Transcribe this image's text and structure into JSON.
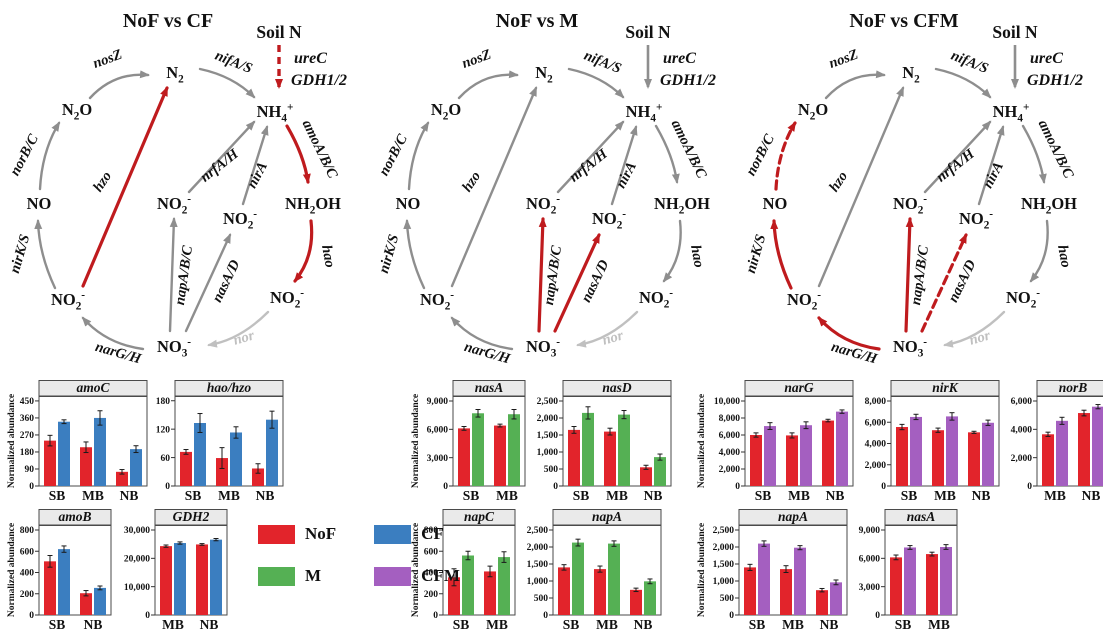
{
  "palette": {
    "NoF": "#e2242b",
    "CF": "#3b7ec0",
    "M": "#55b054",
    "CFM": "#a45fc0",
    "arrow_red": "#bf1b1e",
    "arrow_gray": "#8e8e8e",
    "arrow_lightgray": "#c0c0c0",
    "chart_header_bg": "#eaeaea",
    "chart_border": "#4a4a4a",
    "text_black": "#111111"
  },
  "legend": {
    "items": [
      {
        "label": "NoF",
        "color": "#e2242b"
      },
      {
        "label": "CF",
        "color": "#3b7ec0"
      },
      {
        "label": "M",
        "color": "#55b054"
      },
      {
        "label": "CFM",
        "color": "#a45fc0"
      }
    ]
  },
  "cycle": {
    "nodes": {
      "n2": "N_2",
      "nh4": "NH_4^+",
      "n2o": "N_2O",
      "no": "NO",
      "no2l": "NO_2^-",
      "no3": "NO_3^-",
      "no2br": "NO_2^-",
      "nh2oh": "NH_2OH",
      "no2c1": "NO_2^-",
      "no2c2": "NO_2^-"
    },
    "genes": {
      "nosZ": "nosZ",
      "nifAS": "nifA/S",
      "amo": "amoA/B/C",
      "hao": "hao",
      "nor": "nor",
      "nar": "narG/H",
      "nirKS": "nirK/S",
      "norBC": "norB/C",
      "hzo": "hzo",
      "nap": "napA/B/C",
      "nas": "nasA/D",
      "nrf": "nrfA/H",
      "nirA": "nirA"
    },
    "soil_label": "Soil N",
    "soil_genes": [
      "ureC",
      "GDH1/2"
    ]
  },
  "diagrams": [
    {
      "title": "NoF vs CF",
      "arrows": {
        "soil": "red_dashed",
        "nosZ": "gray",
        "nifAS": "gray",
        "amo": "red",
        "hao": "red",
        "nor": "lightgray",
        "nar": "gray",
        "nirKS": "gray",
        "norBC": "gray",
        "hzo": "red",
        "nap": "gray",
        "nas": "gray",
        "nrf": "gray",
        "nirA": "gray"
      }
    },
    {
      "title": "NoF vs M",
      "arrows": {
        "soil": "gray",
        "nosZ": "gray",
        "nifAS": "gray",
        "amo": "gray",
        "hao": "gray",
        "nor": "lightgray",
        "nar": "gray",
        "nirKS": "gray",
        "norBC": "gray",
        "hzo": "gray",
        "nap": "red",
        "nas": "red",
        "nrf": "gray",
        "nirA": "gray"
      }
    },
    {
      "title": "NoF vs CFM",
      "arrows": {
        "soil": "gray",
        "nosZ": "gray",
        "nifAS": "gray",
        "amo": "gray",
        "hao": "gray",
        "nor": "lightgray",
        "nar": "red",
        "nirKS": "red",
        "norBC": "red_dashed",
        "hzo": "gray",
        "nap": "red",
        "nas": "red_dashed",
        "nrf": "gray",
        "nirA": "gray"
      }
    }
  ],
  "chart_data": {
    "groups": [
      {
        "comparison": "NoF vs CF",
        "rows": [
          [
            {
              "type": "bar",
              "title": "amoC",
              "ylabel": "Normalized abundance",
              "categories": [
                "SB",
                "MB",
                "NB"
              ],
              "yticks": [
                0,
                90,
                180,
                270,
                360,
                450
              ],
              "ylim": [
                0,
                476
              ],
              "series": [
                {
                  "name": "NoF",
                  "values": [
                    240,
                    205,
                    75
                  ],
                  "errors": [
                    28,
                    28,
                    12
                  ]
                },
                {
                  "name": "CF",
                  "values": [
                    340,
                    360,
                    195
                  ],
                  "errors": [
                    10,
                    38,
                    18
                  ]
                }
              ]
            },
            {
              "type": "bar",
              "title": "hao/hzo",
              "ylabel": null,
              "categories": [
                "SB",
                "MB",
                "NB"
              ],
              "yticks": [
                0,
                60,
                120,
                180
              ],
              "ylim": [
                0,
                190
              ],
              "series": [
                {
                  "name": "NoF",
                  "values": [
                    72,
                    59,
                    37
                  ],
                  "errors": [
                    5,
                    22,
                    10
                  ]
                },
                {
                  "name": "CF",
                  "values": [
                    133,
                    113,
                    140
                  ],
                  "errors": [
                    20,
                    12,
                    18
                  ]
                }
              ]
            }
          ],
          [
            {
              "type": "bar",
              "title": "amoB",
              "ylabel": "Normalized abundance",
              "categories": [
                "SB",
                "NB"
              ],
              "yticks": [
                0,
                200,
                400,
                600,
                800
              ],
              "ylim": [
                0,
                847
              ],
              "series": [
                {
                  "name": "NoF",
                  "values": [
                    505,
                    205
                  ],
                  "errors": [
                    55,
                    25
                  ]
                },
                {
                  "name": "CF",
                  "values": [
                    620,
                    255
                  ],
                  "errors": [
                    30,
                    18
                  ]
                }
              ]
            },
            {
              "type": "bar",
              "title": "GDH2",
              "ylabel": null,
              "categories": [
                "MB",
                "NB"
              ],
              "yticks": [
                0,
                10000,
                20000,
                30000
              ],
              "ylim": [
                0,
                31765
              ],
              "series": [
                {
                  "name": "NoF",
                  "values": [
                    24300,
                    24900
                  ],
                  "errors": [
                    400,
                    300
                  ]
                },
                {
                  "name": "CF",
                  "values": [
                    25400,
                    26600
                  ],
                  "errors": [
                    400,
                    400
                  ]
                }
              ]
            }
          ]
        ]
      },
      {
        "comparison": "NoF vs M",
        "rows": [
          [
            {
              "type": "bar",
              "title": "nasA",
              "ylabel": "Normalized abundance",
              "categories": [
                "SB",
                "MB"
              ],
              "yticks": [
                0,
                3000,
                6000,
                9000
              ],
              "ylim": [
                0,
                9529
              ],
              "series": [
                {
                  "name": "NoF",
                  "values": [
                    6100,
                    6400
                  ],
                  "errors": [
                    200,
                    150
                  ]
                },
                {
                  "name": "M",
                  "values": [
                    7700,
                    7600
                  ],
                  "errors": [
                    400,
                    500
                  ]
                }
              ]
            },
            {
              "type": "bar",
              "title": "nasD",
              "ylabel": null,
              "categories": [
                "SB",
                "MB",
                "NB"
              ],
              "yticks": [
                0,
                500,
                1000,
                1500,
                2000,
                2500
              ],
              "ylim": [
                0,
                2647
              ],
              "series": [
                {
                  "name": "NoF",
                  "values": [
                    1650,
                    1600,
                    550
                  ],
                  "errors": [
                    100,
                    100,
                    60
                  ]
                },
                {
                  "name": "M",
                  "values": [
                    2150,
                    2100,
                    850
                  ],
                  "errors": [
                    180,
                    120,
                    90
                  ]
                }
              ]
            }
          ],
          [
            {
              "type": "bar",
              "title": "napC",
              "ylabel": "Normalized abundance",
              "categories": [
                "SB",
                "MB"
              ],
              "yticks": [
                0,
                200,
                400,
                600,
                800
              ],
              "ylim": [
                0,
                847
              ],
              "series": [
                {
                  "name": "NoF",
                  "values": [
                    355,
                    410
                  ],
                  "errors": [
                    80,
                    50
                  ]
                },
                {
                  "name": "M",
                  "values": [
                    560,
                    545
                  ],
                  "errors": [
                    40,
                    50
                  ]
                }
              ]
            },
            {
              "type": "bar",
              "title": "napA",
              "ylabel": null,
              "categories": [
                "SB",
                "MB",
                "NB"
              ],
              "yticks": [
                0,
                500,
                1000,
                1500,
                2000,
                2500
              ],
              "ylim": [
                0,
                2647
              ],
              "series": [
                {
                  "name": "NoF",
                  "values": [
                    1400,
                    1350,
                    740
                  ],
                  "errors": [
                    80,
                    90,
                    50
                  ]
                },
                {
                  "name": "M",
                  "values": [
                    2130,
                    2100,
                    990
                  ],
                  "errors": [
                    100,
                    80,
                    70
                  ]
                }
              ]
            }
          ]
        ]
      },
      {
        "comparison": "NoF vs CFM",
        "rows": [
          [
            {
              "type": "bar",
              "title": "narG",
              "ylabel": "Normalized abundance",
              "categories": [
                "SB",
                "MB",
                "NB"
              ],
              "yticks": [
                0,
                2000,
                4000,
                6000,
                8000,
                10000
              ],
              "ylim": [
                0,
                10588
              ],
              "series": [
                {
                  "name": "NoF",
                  "values": [
                    6000,
                    5950,
                    7700
                  ],
                  "errors": [
                    250,
                    300,
                    150
                  ]
                },
                {
                  "name": "CFM",
                  "values": [
                    7050,
                    7150,
                    8750
                  ],
                  "errors": [
                    400,
                    400,
                    200
                  ]
                }
              ]
            },
            {
              "type": "bar",
              "title": "nirK",
              "ylabel": null,
              "categories": [
                "SB",
                "MB",
                "NB"
              ],
              "yticks": [
                0,
                2000,
                4000,
                6000,
                8000
              ],
              "ylim": [
                0,
                8470
              ],
              "series": [
                {
                  "name": "NoF",
                  "values": [
                    5550,
                    5250,
                    5050
                  ],
                  "errors": [
                    250,
                    200,
                    100
                  ]
                },
                {
                  "name": "CFM",
                  "values": [
                    6500,
                    6550,
                    5950
                  ],
                  "errors": [
                    250,
                    350,
                    250
                  ]
                }
              ]
            },
            {
              "type": "bar",
              "title": "norB",
              "ylabel": null,
              "categories": [
                "MB",
                "NB"
              ],
              "yticks": [
                0,
                2000,
                4000,
                6000
              ],
              "ylim": [
                0,
                6353
              ],
              "series": [
                {
                  "name": "NoF",
                  "values": [
                    3650,
                    5150
                  ],
                  "errors": [
                    150,
                    200
                  ]
                },
                {
                  "name": "CFM",
                  "values": [
                    4600,
                    5600
                  ],
                  "errors": [
                    250,
                    150
                  ]
                }
              ]
            }
          ],
          [
            {
              "type": "bar",
              "title": "napA",
              "ylabel": "Normalized abundance",
              "categories": [
                "SB",
                "MB",
                "NB"
              ],
              "yticks": [
                0,
                500,
                1000,
                1500,
                2000,
                2500
              ],
              "ylim": [
                0,
                2647
              ],
              "series": [
                {
                  "name": "NoF",
                  "values": [
                    1400,
                    1350,
                    730
                  ],
                  "errors": [
                    90,
                    100,
                    50
                  ]
                },
                {
                  "name": "CFM",
                  "values": [
                    2100,
                    1980,
                    960
                  ],
                  "errors": [
                    80,
                    60,
                    70
                  ]
                }
              ]
            },
            {
              "type": "bar",
              "title": "nasA",
              "ylabel": null,
              "categories": [
                "SB",
                "MB"
              ],
              "yticks": [
                0,
                3000,
                6000,
                9000
              ],
              "ylim": [
                0,
                9529
              ],
              "series": [
                {
                  "name": "NoF",
                  "values": [
                    6100,
                    6450
                  ],
                  "errors": [
                    250,
                    200
                  ]
                },
                {
                  "name": "CFM",
                  "values": [
                    7150,
                    7200
                  ],
                  "errors": [
                    200,
                    250
                  ]
                }
              ]
            }
          ]
        ]
      }
    ]
  }
}
